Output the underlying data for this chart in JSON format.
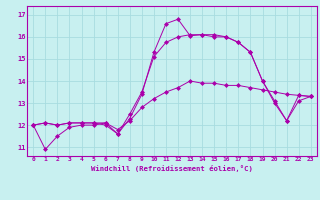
{
  "xlabel": "Windchill (Refroidissement éolien,°C)",
  "bg_color": "#c8f0f0",
  "line_color": "#aa00aa",
  "grid_color": "#a8dce0",
  "xlim": [
    -0.5,
    23.5
  ],
  "ylim": [
    10.6,
    17.4
  ],
  "yticks": [
    11,
    12,
    13,
    14,
    15,
    16,
    17
  ],
  "xticks": [
    0,
    1,
    2,
    3,
    4,
    5,
    6,
    7,
    8,
    9,
    10,
    11,
    12,
    13,
    14,
    15,
    16,
    17,
    18,
    19,
    20,
    21,
    22,
    23
  ],
  "series": [
    [
      12.0,
      12.1,
      12.0,
      12.1,
      12.1,
      12.1,
      12.1,
      11.8,
      12.2,
      12.8,
      13.2,
      13.5,
      13.7,
      14.0,
      13.9,
      13.9,
      13.8,
      13.8,
      13.7,
      13.6,
      13.5,
      13.4,
      13.35,
      13.3
    ],
    [
      12.0,
      10.9,
      11.5,
      11.9,
      12.0,
      12.0,
      12.1,
      11.6,
      12.5,
      13.5,
      15.1,
      15.75,
      16.0,
      16.1,
      16.1,
      16.0,
      16.0,
      15.75,
      15.3,
      14.0,
      13.1,
      12.2,
      13.1,
      13.3
    ],
    [
      12.0,
      12.1,
      12.0,
      12.1,
      12.1,
      12.1,
      12.0,
      11.6,
      12.3,
      13.4,
      15.3,
      16.6,
      16.8,
      16.05,
      16.1,
      16.1,
      16.0,
      15.75,
      15.3,
      14.0,
      13.0,
      12.2,
      13.35,
      13.3
    ]
  ]
}
